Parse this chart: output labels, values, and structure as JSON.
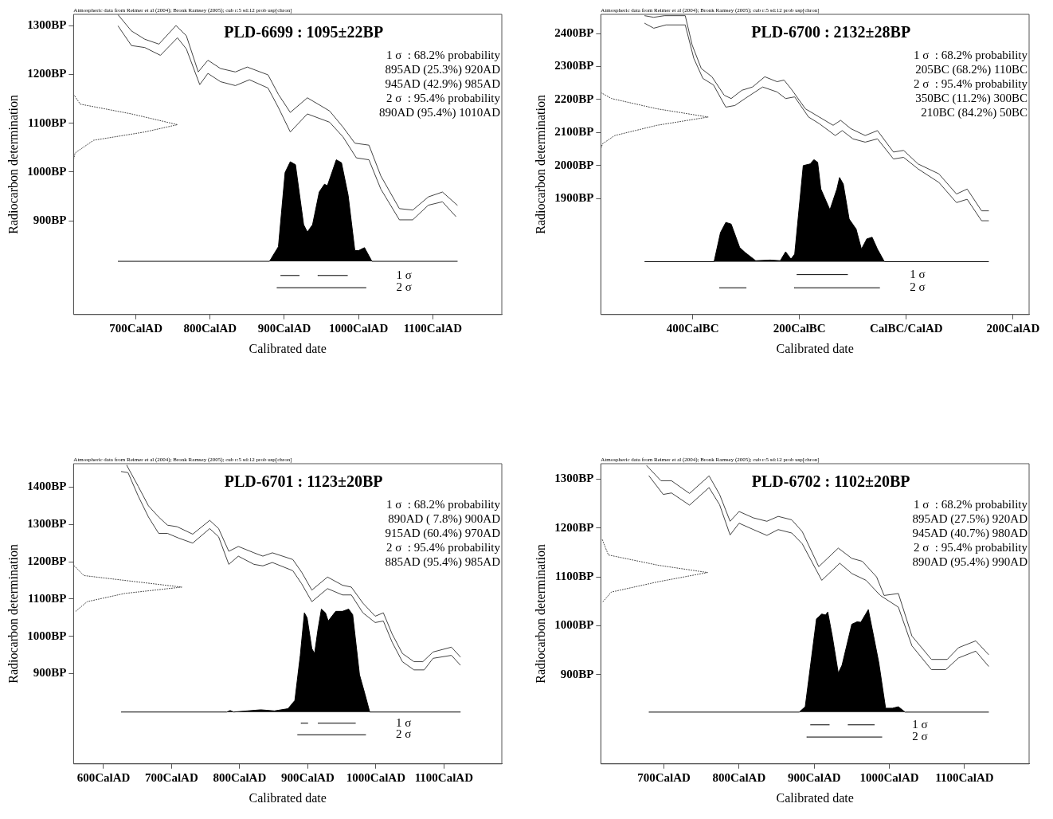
{
  "chart_data": [
    {
      "type": "line",
      "title": "PLD-6699 : 1095±22BP",
      "subtitle": "Atmospheric data from Reimer et al (2004); Bronk Ramsey (2005); cub r:5 sd:12 prob usp[chron]",
      "xlabel": "Calibrated date",
      "ylabel": "Radiocarbon determination",
      "legend": false,
      "xlim": [
        616,
        1193
      ],
      "xticks": [
        {
          "value": 700,
          "label": "700CalAD"
        },
        {
          "value": 800,
          "label": "800CalAD"
        },
        {
          "value": 900,
          "label": "900CalAD"
        },
        {
          "value": 1000,
          "label": "1000CalAD"
        },
        {
          "value": 1100,
          "label": "1100CalAD"
        }
      ],
      "ylim": [
        708,
        1323
      ],
      "yticks": [
        {
          "value": 900,
          "label": "900BP"
        },
        {
          "value": 1000,
          "label": "1000BP"
        },
        {
          "value": 1100,
          "label": "1100BP"
        },
        {
          "value": 1200,
          "label": "1200BP"
        },
        {
          "value": 1300,
          "label": "1300BP"
        }
      ],
      "annotations": [
        "1 σ  : 68.2% probability",
        "895AD (25.3%) 920AD",
        "945AD (42.9%) 985AD",
        "2 σ  : 95.4% probability",
        "890AD (95.4%) 1010AD"
      ],
      "series": [
        {
          "type": "line",
          "color": "#444444",
          "x": [
            676,
            694,
            712,
            731,
            754,
            768,
            784,
            797,
            814,
            834,
            850,
            878,
            892,
            908,
            931,
            961,
            979,
            995,
            1014,
            1030,
            1055,
            1073,
            1094,
            1113,
            1133
          ],
          "values": [
            1322,
            1289,
            1272,
            1262,
            1300,
            1279,
            1205,
            1229,
            1212,
            1205,
            1215,
            1199,
            1159,
            1122,
            1152,
            1125,
            1092,
            1059,
            1055,
            992,
            925,
            922,
            949,
            959,
            932
          ]
        },
        {
          "type": "line",
          "color": "#444444",
          "x": [
            676,
            694,
            712,
            733,
            756,
            768,
            786,
            797,
            814,
            834,
            853,
            878,
            892,
            908,
            931,
            961,
            979,
            997,
            1014,
            1030,
            1055,
            1073,
            1094,
            1113,
            1131
          ],
          "values": [
            1299,
            1259,
            1255,
            1239,
            1275,
            1252,
            1179,
            1202,
            1185,
            1177,
            1189,
            1172,
            1132,
            1082,
            1119,
            1102,
            1072,
            1029,
            1025,
            965,
            902,
            902,
            932,
            939,
            909
          ]
        },
        {
          "type": "line",
          "color": "#444444",
          "line_style": "dotted",
          "x": [
            616,
            625,
            694,
            756,
            712,
            643,
            618,
            616
          ],
          "values": [
            1159,
            1139,
            1119,
            1097,
            1082,
            1065,
            1039,
            1025
          ]
        },
        {
          "type": "area",
          "color": "#000000",
          "x": [
            676,
            880,
            892,
            901,
            908,
            915,
            926,
            931,
            938,
            947,
            954,
            958,
            970,
            977,
            986,
            995,
            1000,
            1008,
            1018,
            1133
          ],
          "values": [
            817,
            817,
            847,
            999,
            1021,
            1015,
            892,
            877,
            892,
            959,
            975,
            972,
            1025,
            1019,
            952,
            839,
            839,
            845,
            817,
            817
          ]
        },
        {
          "type": "line",
          "name": "1 σ",
          "color": "#000000",
          "x": [
            895,
            920,
            932,
            945,
            985
          ],
          "values": [
            788,
            788,
            null,
            788,
            788
          ]
        },
        {
          "type": "line",
          "name": "2 σ",
          "color": "#000000",
          "x": [
            890,
            1010
          ],
          "values": [
            763,
            763
          ]
        }
      ]
    },
    {
      "type": "line",
      "title": "PLD-6700 : 2132±28BP",
      "subtitle": "Atmospheric data from Reimer et al (2004); Bronk Ramsey (2005); cub r:5 sd:12 prob usp[chron]",
      "xlabel": "Calibrated date",
      "ylabel": "Radiocarbon determination",
      "legend": false,
      "xlim": [
        -572,
        230
      ],
      "xticks": [
        {
          "value": -400,
          "label": "400CalBC"
        },
        {
          "value": -200,
          "label": "200CalBC"
        },
        {
          "value": 0,
          "label": "CalBC/CalAD"
        },
        {
          "value": 200,
          "label": "200CalAD"
        }
      ],
      "ylim": [
        1549,
        2458
      ],
      "yticks": [
        {
          "value": 1900,
          "label": "1900BP"
        },
        {
          "value": 2000,
          "label": "2000BP"
        },
        {
          "value": 2100,
          "label": "2100BP"
        },
        {
          "value": 2200,
          "label": "2200BP"
        },
        {
          "value": 2300,
          "label": "2300BP"
        },
        {
          "value": 2400,
          "label": "2400BP"
        }
      ],
      "annotations": [
        "1 σ  : 68.2% probability",
        "205BC (68.2%) 110BC",
        "2 σ  : 95.4% probability",
        "350BC (11.2%) 300BC",
        "210BC (84.2%) 50BC"
      ],
      "series": [
        {
          "type": "line",
          "color": "#444444",
          "x": [
            -490,
            -473,
            -453,
            -414,
            -401,
            -384,
            -364,
            -341,
            -328,
            -308,
            -288,
            -265,
            -242,
            -229,
            -216,
            -189,
            -163,
            -137,
            -123,
            -104,
            -77,
            -54,
            -24,
            -5,
            22,
            61,
            94,
            114,
            141,
            154
          ],
          "values": [
            2454,
            2449,
            2454,
            2454,
            2365,
            2294,
            2269,
            2213,
            2203,
            2228,
            2238,
            2269,
            2254,
            2259,
            2233,
            2172,
            2147,
            2122,
            2137,
            2112,
            2091,
            2106,
            2041,
            2046,
            2005,
            1975,
            1914,
            1929,
            1863,
            1863
          ]
        },
        {
          "type": "line",
          "color": "#444444",
          "x": [
            -490,
            -473,
            -450,
            -414,
            -398,
            -381,
            -361,
            -338,
            -321,
            -302,
            -269,
            -242,
            -226,
            -209,
            -183,
            -163,
            -133,
            -120,
            -100,
            -77,
            -54,
            -24,
            -5,
            22,
            61,
            94,
            114,
            141,
            154
          ],
          "values": [
            2431,
            2416,
            2426,
            2426,
            2325,
            2264,
            2244,
            2177,
            2182,
            2203,
            2238,
            2223,
            2203,
            2208,
            2147,
            2127,
            2091,
            2106,
            2081,
            2071,
            2081,
            2020,
            2025,
            1990,
            1949,
            1888,
            1898,
            1833,
            1833
          ]
        },
        {
          "type": "line",
          "color": "#444444",
          "line_style": "dotted",
          "x": [
            -572,
            -552,
            -467,
            -371,
            -467,
            -546,
            -569,
            -572
          ],
          "values": [
            2221,
            2203,
            2172,
            2147,
            2122,
            2091,
            2066,
            2051
          ]
        },
        {
          "type": "area",
          "color": "#000000",
          "x": [
            -490,
            -360,
            -348,
            -338,
            -328,
            -312,
            -302,
            -282,
            -255,
            -236,
            -226,
            -216,
            -209,
            -193,
            -180,
            -173,
            -166,
            -160,
            -143,
            -130,
            -125,
            -118,
            -107,
            -94,
            -84,
            -74,
            -64,
            -54,
            -41,
            154
          ],
          "values": [
            1709,
            1709,
            1797,
            1828,
            1823,
            1752,
            1737,
            1712,
            1714,
            1712,
            1739,
            1717,
            1732,
            2000,
            2005,
            2018,
            2010,
            1929,
            1866,
            1929,
            1964,
            1944,
            1838,
            1808,
            1747,
            1778,
            1783,
            1747,
            1709,
            1709
          ]
        },
        {
          "type": "line",
          "name": "1 σ",
          "color": "#000000",
          "x": [
            -205,
            -110
          ],
          "values": [
            1670,
            1670
          ]
        },
        {
          "type": "line",
          "name": "2 σ",
          "color": "#000000",
          "x": [
            -350,
            -300,
            -255,
            -210,
            -50
          ],
          "values": [
            1630,
            1630,
            null,
            1630,
            1630
          ]
        }
      ]
    },
    {
      "type": "line",
      "title": "PLD-6701 : 1123±20BP",
      "subtitle": "Atmospheric data from Reimer et al (2004); Bronk Ramsey (2005); cub r:5 sd:12 prob usp[chron]",
      "xlabel": "Calibrated date",
      "ylabel": "Radiocarbon determination",
      "legend": false,
      "xlim": [
        556,
        1185
      ],
      "xticks": [
        {
          "value": 600,
          "label": "600CalAD"
        },
        {
          "value": 700,
          "label": "700CalAD"
        },
        {
          "value": 800,
          "label": "800CalAD"
        },
        {
          "value": 900,
          "label": "900CalAD"
        },
        {
          "value": 1000,
          "label": "1000CalAD"
        },
        {
          "value": 1100,
          "label": "1100CalAD"
        }
      ],
      "ylim": [
        658,
        1463
      ],
      "yticks": [
        {
          "value": 900,
          "label": "900BP"
        },
        {
          "value": 1000,
          "label": "1000BP"
        },
        {
          "value": 1100,
          "label": "1100BP"
        },
        {
          "value": 1200,
          "label": "1200BP"
        },
        {
          "value": 1300,
          "label": "1300BP"
        },
        {
          "value": 1400,
          "label": "1400BP"
        }
      ],
      "annotations": [
        "1 σ  : 68.2% probability",
        "890AD ( 7.8%) 900AD",
        "915AD (60.4%) 970AD",
        "2 σ  : 95.4% probability",
        "885AD (95.4%) 985AD"
      ],
      "series": [
        {
          "type": "line",
          "color": "#444444",
          "x": [
            634,
            651,
            666,
            681,
            694,
            708,
            731,
            756,
            769,
            784,
            798,
            821,
            834,
            848,
            878,
            891,
            906,
            929,
            951,
            964,
            981,
            999,
            1011,
            1024,
            1039,
            1056,
            1069,
            1084,
            1111,
            1124
          ],
          "values": [
            1459,
            1402,
            1350,
            1320,
            1298,
            1294,
            1274,
            1311,
            1289,
            1228,
            1241,
            1224,
            1215,
            1224,
            1206,
            1172,
            1124,
            1159,
            1137,
            1132,
            1089,
            1054,
            1063,
            1006,
            954,
            932,
            932,
            958,
            971,
            945
          ]
        },
        {
          "type": "line",
          "color": "#444444",
          "x": [
            626,
            636,
            651,
            666,
            681,
            694,
            711,
            731,
            756,
            769,
            784,
            798,
            821,
            834,
            848,
            878,
            891,
            906,
            929,
            951,
            964,
            981,
            999,
            1011,
            1024,
            1039,
            1056,
            1071,
            1084,
            1111,
            1124
          ],
          "values": [
            1442,
            1439,
            1376,
            1320,
            1276,
            1276,
            1263,
            1250,
            1289,
            1267,
            1193,
            1215,
            1193,
            1189,
            1198,
            1176,
            1141,
            1093,
            1128,
            1111,
            1111,
            1063,
            1037,
            1041,
            984,
            932,
            910,
            910,
            941,
            949,
            923
          ]
        },
        {
          "type": "line",
          "color": "#444444",
          "line_style": "dotted",
          "x": [
            557,
            571,
            631,
            715,
            631,
            576,
            559
          ],
          "values": [
            1189,
            1163,
            1150,
            1132,
            1115,
            1093,
            1067
          ]
        },
        {
          "type": "area",
          "color": "#000000",
          "x": [
            626,
            781,
            786,
            791,
            811,
            831,
            851,
            871,
            881,
            889,
            895,
            899,
            906,
            910,
            915,
            920,
            926,
            930,
            941,
            951,
            960,
            966,
            976,
            984,
            991,
            1124
          ],
          "values": [
            797,
            797,
            801,
            797,
            800,
            803,
            800,
            806,
            828,
            949,
            1063,
            1050,
            967,
            954,
            1019,
            1073,
            1063,
            1041,
            1067,
            1067,
            1073,
            1058,
            897,
            845,
            797,
            797
          ]
        },
        {
          "type": "line",
          "name": "1 σ",
          "color": "#000000",
          "x": [
            890,
            900,
            908,
            915,
            970
          ],
          "values": [
            767,
            767,
            null,
            767,
            767
          ]
        },
        {
          "type": "line",
          "name": "2 σ",
          "color": "#000000",
          "x": [
            885,
            985
          ],
          "values": [
            736,
            736
          ]
        }
      ]
    },
    {
      "type": "line",
      "title": "PLD-6702 : 1102±20BP",
      "subtitle": "Atmospheric data from Reimer et al (2004); Bronk Ramsey (2005); cub r:5 sd:12 prob usp[chron]",
      "xlabel": "Calibrated date",
      "ylabel": "Radiocarbon determination",
      "legend": false,
      "xlim": [
        616,
        1186
      ],
      "xticks": [
        {
          "value": 700,
          "label": "700CalAD"
        },
        {
          "value": 800,
          "label": "800CalAD"
        },
        {
          "value": 900,
          "label": "900CalAD"
        },
        {
          "value": 1000,
          "label": "1000CalAD"
        },
        {
          "value": 1100,
          "label": "1100CalAD"
        }
      ],
      "ylim": [
        717,
        1332
      ],
      "yticks": [
        {
          "value": 900,
          "label": "900BP"
        },
        {
          "value": 1000,
          "label": "1000BP"
        },
        {
          "value": 1100,
          "label": "1100BP"
        },
        {
          "value": 1200,
          "label": "1200BP"
        },
        {
          "value": 1300,
          "label": "1300BP"
        }
      ],
      "annotations": [
        "1 σ  : 68.2% probability",
        "895AD (27.5%) 920AD",
        "945AD (40.7%) 980AD",
        "2 σ  : 95.4% probability",
        "890AD (95.4%) 990AD"
      ],
      "series": [
        {
          "type": "line",
          "color": "#444444",
          "x": [
            677,
            696,
            710,
            734,
            760,
            774,
            788,
            800,
            819,
            837,
            852,
            870,
            884,
            906,
            932,
            950,
            964,
            983,
            993,
            1012,
            1030,
            1056,
            1077,
            1092,
            1115,
            1132
          ],
          "values": [
            1328,
            1297,
            1297,
            1271,
            1307,
            1269,
            1214,
            1234,
            1221,
            1214,
            1224,
            1217,
            1193,
            1121,
            1159,
            1138,
            1132,
            1100,
            1062,
            1066,
            979,
            931,
            931,
            955,
            969,
            941
          ]
        },
        {
          "type": "line",
          "color": "#444444",
          "x": [
            680,
            699,
            710,
            734,
            760,
            774,
            788,
            800,
            819,
            837,
            852,
            870,
            884,
            910,
            934,
            950,
            969,
            988,
            1012,
            1030,
            1056,
            1075,
            1092,
            1115,
            1132
          ],
          "values": [
            1307,
            1269,
            1272,
            1247,
            1283,
            1248,
            1186,
            1210,
            1197,
            1185,
            1197,
            1190,
            1168,
            1093,
            1128,
            1107,
            1093,
            1062,
            1038,
            959,
            910,
            910,
            934,
            948,
            917
          ]
        },
        {
          "type": "line",
          "color": "#444444",
          "line_style": "dotted",
          "x": [
            618,
            626,
            692,
            758,
            692,
            630,
            618
          ],
          "values": [
            1176,
            1145,
            1124,
            1109,
            1090,
            1069,
            1048
          ]
        },
        {
          "type": "area",
          "color": "#000000",
          "x": [
            680,
            880,
            888,
            903,
            910,
            915,
            918,
            924,
            932,
            937,
            950,
            957,
            962,
            972,
            979,
            986,
            995,
            1004,
            1012,
            1021,
            1132
          ],
          "values": [
            823,
            823,
            834,
            1014,
            1024,
            1022,
            1028,
            979,
            903,
            919,
            1003,
            1008,
            1007,
            1033,
            979,
            924,
            831,
            831,
            834,
            823,
            823
          ]
        },
        {
          "type": "line",
          "name": "1 σ",
          "color": "#000000",
          "x": [
            895,
            920,
            932,
            945,
            980
          ],
          "values": [
            797,
            797,
            null,
            797,
            797
          ]
        },
        {
          "type": "line",
          "name": "2 σ",
          "color": "#000000",
          "x": [
            890,
            990
          ],
          "values": [
            772,
            772
          ]
        }
      ]
    }
  ]
}
